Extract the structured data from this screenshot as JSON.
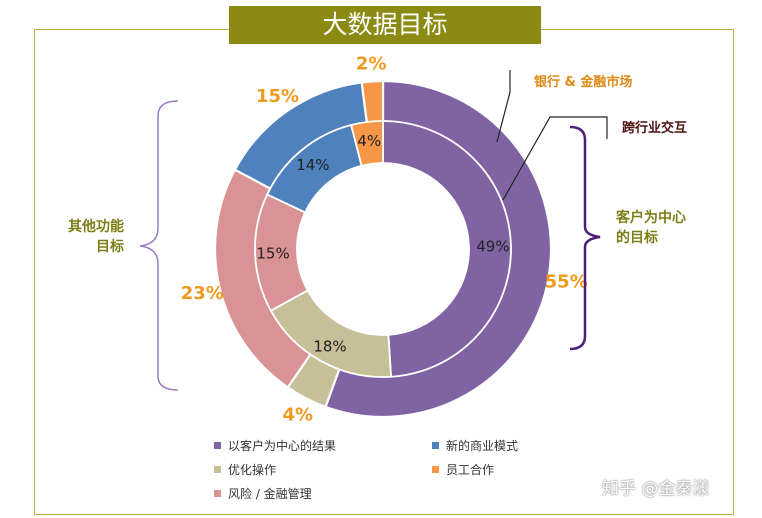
{
  "header": {
    "title": "大数据目标"
  },
  "chart_data": {
    "type": "pie",
    "title": "大数据目标",
    "rings": [
      {
        "name": "outer",
        "values": [
          {
            "label": "以客户为中心的结果",
            "value": 55,
            "color": "#8063a2",
            "text": "55%"
          },
          {
            "label": "优化操作",
            "value": 4,
            "color": "#c6bf97",
            "text": "4%"
          },
          {
            "label": "风险 / 金融管理",
            "value": 23,
            "color": "#d99394",
            "text": "23%"
          },
          {
            "label": "新的商业模式",
            "value": 15,
            "color": "#4f81bd",
            "text": "15%"
          },
          {
            "label": "员工合作",
            "value": 2,
            "color": "#f79646",
            "text": "2%"
          }
        ]
      },
      {
        "name": "inner",
        "values": [
          {
            "label": "以客户为中心的结果",
            "value": 49,
            "color": "#8063a2",
            "text": "49%"
          },
          {
            "label": "优化操作",
            "value": 18,
            "color": "#c6bf97",
            "text": "18%"
          },
          {
            "label": "风险 / 金融管理",
            "value": 15,
            "color": "#d99394",
            "text": "15%"
          },
          {
            "label": "新的商业模式",
            "value": 14,
            "color": "#4f81bd",
            "text": "14%"
          },
          {
            "label": "员工合作",
            "value": 4,
            "color": "#f79646",
            "text": "4%"
          }
        ]
      }
    ],
    "legend": [
      {
        "label": "以客户为中心的结果",
        "color": "#8063a2"
      },
      {
        "label": "新的商业模式",
        "color": "#4f81bd"
      },
      {
        "label": "优化操作",
        "color": "#c6bf97"
      },
      {
        "label": "员工合作",
        "color": "#f79646"
      },
      {
        "label": "风险 / 金融管理",
        "color": "#d99394"
      }
    ],
    "legend_position": "bottom"
  },
  "annotations": {
    "left_group": [
      "其他功能",
      "目标"
    ],
    "right_group": [
      "客户为中心",
      "的目标"
    ],
    "callout_banking": "银行 & 金融市场",
    "callout_cross": "跨行业交互"
  },
  "colors": {
    "title_bg": "#8b8a12",
    "frame": "#b7b34a",
    "percent_label": "#f0991f",
    "bracket": "#7b4fb0"
  },
  "watermark": "知乎 @金秦漾"
}
